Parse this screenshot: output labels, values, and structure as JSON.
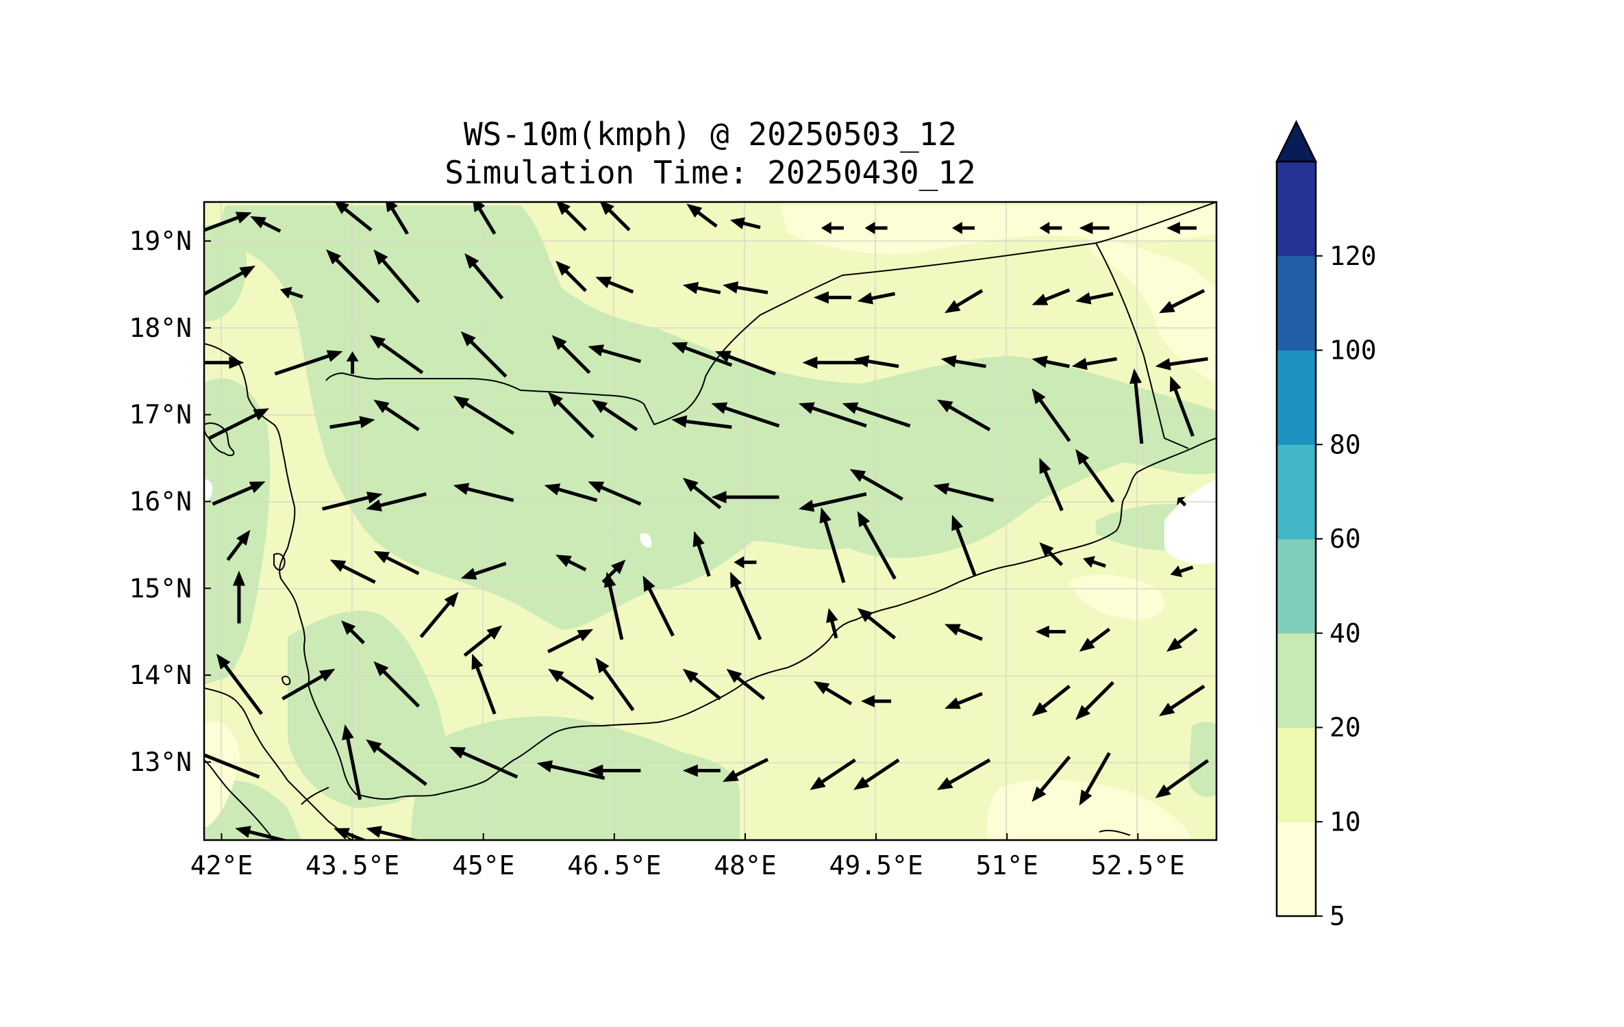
{
  "title_line1": "WS-10m(kmph) @ 20250503_12",
  "title_line2": "Simulation Time: 20250430_12",
  "chart_data": {
    "type": "heatmap",
    "xlim": [
      41.8,
      53.4
    ],
    "ylim": [
      12.1,
      19.45
    ],
    "x_ticks": [
      42,
      43.5,
      45,
      46.5,
      48,
      49.5,
      51,
      52.5
    ],
    "x_tick_labels": [
      "42°E",
      "43.5°E",
      "45°E",
      "46.5°E",
      "48°E",
      "49.5°E",
      "51°E",
      "52.5°E"
    ],
    "y_ticks": [
      13,
      14,
      15,
      16,
      17,
      18,
      19
    ],
    "y_tick_labels": [
      "13°N",
      "14°N",
      "15°N",
      "16°N",
      "17°N",
      "18°N",
      "19°N"
    ],
    "grid": true,
    "colorbar": {
      "levels": [
        5,
        10,
        20,
        40,
        60,
        80,
        100,
        120
      ],
      "labels": [
        "5",
        "10",
        "20",
        "40",
        "60",
        "80",
        "100",
        "120"
      ],
      "colors": [
        "#ffffd9",
        "#edf8b1",
        "#c7e9b4",
        "#7fcdbb",
        "#41b6c4",
        "#1d91c0",
        "#225ea8",
        "#253494"
      ],
      "extend_color": "#081d58",
      "extend": "max"
    },
    "wind_vectors": [
      {
        "lon": 42.0,
        "lat": 13.0,
        "u": -1.0,
        "v": 0.4
      },
      {
        "lon": 43.5,
        "lat": 13.0,
        "u": -0.2,
        "v": 1.0
      },
      {
        "lon": 44.0,
        "lat": 13.0,
        "u": -0.8,
        "v": 0.6
      },
      {
        "lon": 45.0,
        "lat": 13.0,
        "u": -0.9,
        "v": 0.4
      },
      {
        "lon": 46.0,
        "lat": 12.9,
        "u": -0.9,
        "v": 0.2
      },
      {
        "lon": 46.5,
        "lat": 12.9,
        "u": -0.7,
        "v": 0.0
      },
      {
        "lon": 47.5,
        "lat": 12.9,
        "u": -0.5,
        "v": 0.0
      },
      {
        "lon": 48.0,
        "lat": 12.9,
        "u": -0.6,
        "v": -0.3
      },
      {
        "lon": 49.0,
        "lat": 12.85,
        "u": -0.6,
        "v": -0.4
      },
      {
        "lon": 49.5,
        "lat": 12.85,
        "u": -0.6,
        "v": -0.4
      },
      {
        "lon": 50.5,
        "lat": 12.85,
        "u": -0.7,
        "v": -0.4
      },
      {
        "lon": 51.5,
        "lat": 12.8,
        "u": -0.5,
        "v": -0.6
      },
      {
        "lon": 52.0,
        "lat": 12.8,
        "u": -0.4,
        "v": -0.7
      },
      {
        "lon": 53.0,
        "lat": 12.8,
        "u": -0.7,
        "v": -0.5
      },
      {
        "lon": 42.2,
        "lat": 13.9,
        "u": -0.6,
        "v": 0.8
      },
      {
        "lon": 43.0,
        "lat": 13.9,
        "u": 0.7,
        "v": 0.4
      },
      {
        "lon": 44.0,
        "lat": 13.9,
        "u": -0.6,
        "v": 0.6
      },
      {
        "lon": 45.0,
        "lat": 13.9,
        "u": -0.3,
        "v": 0.8
      },
      {
        "lon": 46.0,
        "lat": 13.9,
        "u": -0.6,
        "v": 0.4
      },
      {
        "lon": 46.5,
        "lat": 13.9,
        "u": -0.5,
        "v": 0.7
      },
      {
        "lon": 47.5,
        "lat": 13.9,
        "u": -0.5,
        "v": 0.4
      },
      {
        "lon": 48.0,
        "lat": 13.9,
        "u": -0.5,
        "v": 0.4
      },
      {
        "lon": 49.0,
        "lat": 13.8,
        "u": -0.5,
        "v": 0.3
      },
      {
        "lon": 49.5,
        "lat": 13.7,
        "u": -0.4,
        "v": 0.0
      },
      {
        "lon": 50.5,
        "lat": 13.7,
        "u": -0.5,
        "v": -0.2
      },
      {
        "lon": 51.5,
        "lat": 13.7,
        "u": -0.5,
        "v": -0.4
      },
      {
        "lon": 52.0,
        "lat": 13.7,
        "u": -0.5,
        "v": -0.5
      },
      {
        "lon": 53.0,
        "lat": 13.7,
        "u": -0.6,
        "v": -0.4
      },
      {
        "lon": 42.2,
        "lat": 14.9,
        "u": 0.0,
        "v": 0.7
      },
      {
        "lon": 43.5,
        "lat": 14.5,
        "u": -0.3,
        "v": 0.3
      },
      {
        "lon": 44.5,
        "lat": 14.7,
        "u": 0.5,
        "v": 0.6
      },
      {
        "lon": 45.0,
        "lat": 14.4,
        "u": 0.5,
        "v": 0.4
      },
      {
        "lon": 46.0,
        "lat": 14.4,
        "u": 0.6,
        "v": 0.3
      },
      {
        "lon": 46.5,
        "lat": 14.8,
        "u": -0.2,
        "v": 0.9
      },
      {
        "lon": 47.0,
        "lat": 14.8,
        "u": -0.4,
        "v": 0.8
      },
      {
        "lon": 48.0,
        "lat": 14.8,
        "u": -0.4,
        "v": 0.9
      },
      {
        "lon": 49.0,
        "lat": 14.6,
        "u": -0.1,
        "v": 0.4
      },
      {
        "lon": 49.5,
        "lat": 14.6,
        "u": -0.5,
        "v": 0.4
      },
      {
        "lon": 50.5,
        "lat": 14.5,
        "u": -0.5,
        "v": 0.2
      },
      {
        "lon": 51.5,
        "lat": 14.5,
        "u": -0.4,
        "v": 0.0
      },
      {
        "lon": 52.0,
        "lat": 14.4,
        "u": -0.4,
        "v": -0.3
      },
      {
        "lon": 53.0,
        "lat": 14.4,
        "u": -0.4,
        "v": -0.3
      },
      {
        "lon": 42.2,
        "lat": 15.5,
        "u": 0.3,
        "v": 0.4
      },
      {
        "lon": 43.5,
        "lat": 15.2,
        "u": -0.6,
        "v": 0.3
      },
      {
        "lon": 44.0,
        "lat": 15.3,
        "u": -0.6,
        "v": 0.3
      },
      {
        "lon": 45.0,
        "lat": 15.2,
        "u": -0.6,
        "v": -0.2
      },
      {
        "lon": 46.0,
        "lat": 15.3,
        "u": -0.4,
        "v": 0.2
      },
      {
        "lon": 46.5,
        "lat": 15.2,
        "u": 0.3,
        "v": 0.3
      },
      {
        "lon": 47.5,
        "lat": 15.4,
        "u": -0.2,
        "v": 0.6
      },
      {
        "lon": 48.0,
        "lat": 15.3,
        "u": -0.3,
        "v": 0.0
      },
      {
        "lon": 49.0,
        "lat": 15.5,
        "u": -0.3,
        "v": 1.0
      },
      {
        "lon": 49.5,
        "lat": 15.5,
        "u": -0.5,
        "v": 0.9
      },
      {
        "lon": 50.5,
        "lat": 15.5,
        "u": -0.3,
        "v": 0.8
      },
      {
        "lon": 51.5,
        "lat": 15.4,
        "u": -0.3,
        "v": 0.3
      },
      {
        "lon": 52.0,
        "lat": 15.3,
        "u": -0.3,
        "v": 0.1
      },
      {
        "lon": 53.0,
        "lat": 15.2,
        "u": -0.3,
        "v": -0.1
      },
      {
        "lon": 42.2,
        "lat": 16.1,
        "u": 0.7,
        "v": 0.3
      },
      {
        "lon": 43.5,
        "lat": 16.0,
        "u": 0.8,
        "v": 0.2
      },
      {
        "lon": 44.0,
        "lat": 16.0,
        "u": -0.8,
        "v": -0.2
      },
      {
        "lon": 45.0,
        "lat": 16.1,
        "u": -0.8,
        "v": 0.2
      },
      {
        "lon": 46.0,
        "lat": 16.1,
        "u": -0.7,
        "v": 0.2
      },
      {
        "lon": 46.5,
        "lat": 16.1,
        "u": -0.7,
        "v": 0.3
      },
      {
        "lon": 47.5,
        "lat": 16.1,
        "u": -0.5,
        "v": 0.4
      },
      {
        "lon": 48.0,
        "lat": 16.05,
        "u": -0.9,
        "v": 0.0
      },
      {
        "lon": 49.0,
        "lat": 16.0,
        "u": -0.9,
        "v": -0.2
      },
      {
        "lon": 49.5,
        "lat": 16.2,
        "u": -0.7,
        "v": 0.4
      },
      {
        "lon": 50.5,
        "lat": 16.1,
        "u": -0.8,
        "v": 0.2
      },
      {
        "lon": 51.5,
        "lat": 16.2,
        "u": -0.3,
        "v": 0.7
      },
      {
        "lon": 52.0,
        "lat": 16.3,
        "u": -0.5,
        "v": 0.7
      },
      {
        "lon": 53.0,
        "lat": 16.0,
        "u": -0.1,
        "v": 0.1
      },
      {
        "lon": 42.2,
        "lat": 16.9,
        "u": 0.8,
        "v": 0.4
      },
      {
        "lon": 43.5,
        "lat": 16.9,
        "u": 0.6,
        "v": 0.1
      },
      {
        "lon": 44.0,
        "lat": 17.0,
        "u": -0.6,
        "v": 0.4
      },
      {
        "lon": 45.0,
        "lat": 17.0,
        "u": -0.8,
        "v": 0.5
      },
      {
        "lon": 46.0,
        "lat": 17.0,
        "u": -0.6,
        "v": 0.6
      },
      {
        "lon": 46.5,
        "lat": 17.0,
        "u": -0.6,
        "v": 0.4
      },
      {
        "lon": 47.5,
        "lat": 16.9,
        "u": -0.8,
        "v": 0.1
      },
      {
        "lon": 48.0,
        "lat": 17.0,
        "u": -0.9,
        "v": 0.3
      },
      {
        "lon": 49.0,
        "lat": 17.0,
        "u": -0.9,
        "v": 0.3
      },
      {
        "lon": 49.5,
        "lat": 17.0,
        "u": -0.9,
        "v": 0.3
      },
      {
        "lon": 50.5,
        "lat": 17.0,
        "u": -0.7,
        "v": 0.4
      },
      {
        "lon": 51.5,
        "lat": 17.0,
        "u": -0.5,
        "v": 0.7
      },
      {
        "lon": 52.5,
        "lat": 17.1,
        "u": -0.1,
        "v": 1.0
      },
      {
        "lon": 53.0,
        "lat": 17.1,
        "u": -0.3,
        "v": 0.8
      },
      {
        "lon": 42.0,
        "lat": 17.6,
        "u": 0.6,
        "v": 0.0
      },
      {
        "lon": 43.0,
        "lat": 17.6,
        "u": 0.9,
        "v": 0.3
      },
      {
        "lon": 43.5,
        "lat": 17.6,
        "u": 0.0,
        "v": 0.3
      },
      {
        "lon": 44.0,
        "lat": 17.7,
        "u": -0.7,
        "v": 0.5
      },
      {
        "lon": 45.0,
        "lat": 17.7,
        "u": -0.6,
        "v": 0.6
      },
      {
        "lon": 46.0,
        "lat": 17.7,
        "u": -0.5,
        "v": 0.5
      },
      {
        "lon": 46.5,
        "lat": 17.7,
        "u": -0.7,
        "v": 0.2
      },
      {
        "lon": 47.5,
        "lat": 17.7,
        "u": -0.8,
        "v": 0.3
      },
      {
        "lon": 48.0,
        "lat": 17.6,
        "u": -0.8,
        "v": 0.3
      },
      {
        "lon": 49.0,
        "lat": 17.6,
        "u": -0.8,
        "v": 0.0
      },
      {
        "lon": 49.5,
        "lat": 17.6,
        "u": -0.6,
        "v": 0.1
      },
      {
        "lon": 50.5,
        "lat": 17.6,
        "u": -0.6,
        "v": 0.1
      },
      {
        "lon": 51.5,
        "lat": 17.6,
        "u": -0.5,
        "v": 0.1
      },
      {
        "lon": 52.0,
        "lat": 17.6,
        "u": -0.6,
        "v": -0.1
      },
      {
        "lon": 53.0,
        "lat": 17.6,
        "u": -0.7,
        "v": -0.1
      },
      {
        "lon": 42.0,
        "lat": 18.5,
        "u": 0.9,
        "v": 0.5
      },
      {
        "lon": 42.8,
        "lat": 18.4,
        "u": -0.3,
        "v": 0.1
      },
      {
        "lon": 43.5,
        "lat": 18.6,
        "u": -0.7,
        "v": 0.7
      },
      {
        "lon": 44.0,
        "lat": 18.6,
        "u": -0.6,
        "v": 0.7
      },
      {
        "lon": 45.0,
        "lat": 18.6,
        "u": -0.5,
        "v": 0.6
      },
      {
        "lon": 46.0,
        "lat": 18.6,
        "u": -0.4,
        "v": 0.4
      },
      {
        "lon": 46.5,
        "lat": 18.5,
        "u": -0.5,
        "v": 0.2
      },
      {
        "lon": 47.5,
        "lat": 18.45,
        "u": -0.5,
        "v": 0.1
      },
      {
        "lon": 48.0,
        "lat": 18.45,
        "u": -0.6,
        "v": 0.1
      },
      {
        "lon": 49.0,
        "lat": 18.35,
        "u": -0.5,
        "v": 0.0
      },
      {
        "lon": 49.5,
        "lat": 18.35,
        "u": -0.5,
        "v": -0.1
      },
      {
        "lon": 50.5,
        "lat": 18.3,
        "u": -0.5,
        "v": -0.3
      },
      {
        "lon": 51.5,
        "lat": 18.35,
        "u": -0.5,
        "v": -0.2
      },
      {
        "lon": 52.0,
        "lat": 18.35,
        "u": -0.5,
        "v": -0.1
      },
      {
        "lon": 53.0,
        "lat": 18.3,
        "u": -0.6,
        "v": -0.3
      },
      {
        "lon": 42.0,
        "lat": 19.2,
        "u": 0.8,
        "v": 0.3
      },
      {
        "lon": 42.5,
        "lat": 19.2,
        "u": -0.4,
        "v": 0.2
      },
      {
        "lon": 43.5,
        "lat": 19.3,
        "u": -0.5,
        "v": 0.4
      },
      {
        "lon": 44.0,
        "lat": 19.3,
        "u": -0.3,
        "v": 0.5
      },
      {
        "lon": 45.0,
        "lat": 19.3,
        "u": -0.3,
        "v": 0.5
      },
      {
        "lon": 46.0,
        "lat": 19.3,
        "u": -0.4,
        "v": 0.4
      },
      {
        "lon": 46.5,
        "lat": 19.3,
        "u": -0.4,
        "v": 0.4
      },
      {
        "lon": 47.5,
        "lat": 19.3,
        "u": -0.4,
        "v": 0.3
      },
      {
        "lon": 48.0,
        "lat": 19.2,
        "u": -0.4,
        "v": 0.1
      },
      {
        "lon": 49.0,
        "lat": 19.15,
        "u": -0.3,
        "v": 0.0
      },
      {
        "lon": 49.5,
        "lat": 19.15,
        "u": -0.3,
        "v": 0.0
      },
      {
        "lon": 50.5,
        "lat": 19.15,
        "u": -0.3,
        "v": 0.0
      },
      {
        "lon": 51.5,
        "lat": 19.15,
        "u": -0.3,
        "v": 0.0
      },
      {
        "lon": 52.0,
        "lat": 19.15,
        "u": -0.4,
        "v": 0.0
      },
      {
        "lon": 53.0,
        "lat": 19.15,
        "u": -0.4,
        "v": 0.0
      },
      {
        "lon": 42.5,
        "lat": 12.15,
        "u": -0.8,
        "v": 0.2
      },
      {
        "lon": 43.5,
        "lat": 12.15,
        "u": -0.5,
        "v": 0.2
      },
      {
        "lon": 44.0,
        "lat": 12.15,
        "u": -0.8,
        "v": 0.2
      }
    ]
  }
}
